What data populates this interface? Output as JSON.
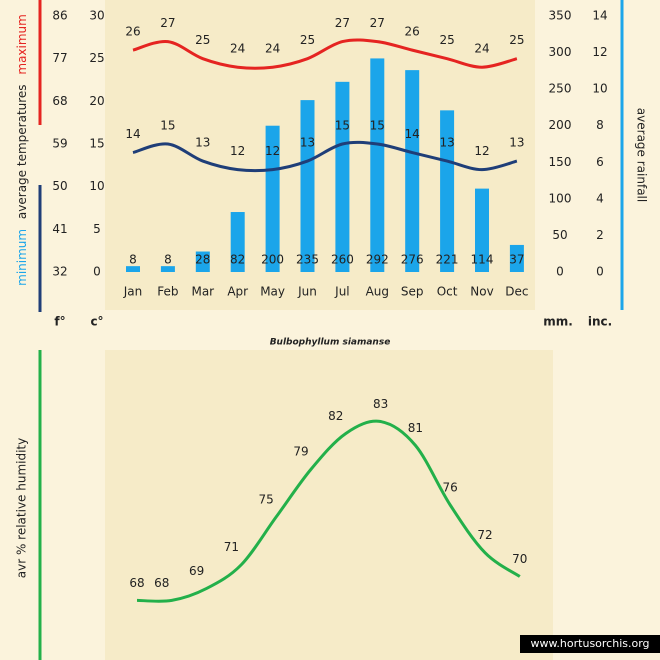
{
  "chart_data": [
    {
      "type": "combo",
      "title": "Bulbophyllum siamanse",
      "ylabel": "average temperatures",
      "categories": [
        "Jan",
        "Feb",
        "Mar",
        "Apr",
        "May",
        "Jun",
        "Jul",
        "Aug",
        "Sep",
        "Oct",
        "Nov",
        "Dec"
      ],
      "series": [
        {
          "name": "average rainfall",
          "type": "bar",
          "axis": "y2",
          "color": "#1ba5ea",
          "values": [
            8,
            8,
            28,
            82,
            200,
            235,
            260,
            292,
            276,
            221,
            114,
            37
          ]
        },
        {
          "name": "maximum",
          "type": "line",
          "color": "#e52421",
          "values": [
            26,
            27,
            25,
            24,
            24,
            25,
            27,
            27,
            26,
            25,
            24,
            25
          ]
        },
        {
          "name": "minimum",
          "type": "line",
          "color": "#1f3e78",
          "values": [
            14,
            15,
            13,
            12,
            12,
            13,
            15,
            15,
            14,
            13,
            12,
            13
          ]
        }
      ],
      "ylim": [
        0,
        30
      ],
      "yticks": [
        0,
        5,
        10,
        15,
        20,
        25,
        30
      ],
      "yunit": "c°",
      "yflim": [
        32,
        86
      ],
      "yfticks": [
        32,
        41,
        50,
        59,
        68,
        77,
        86
      ],
      "yfunit": "f°",
      "y2lim": [
        0,
        350
      ],
      "y2ticks": [
        0,
        50,
        100,
        150,
        200,
        250,
        300,
        350
      ],
      "y2unit": "mm.",
      "y3lim": [
        0,
        14
      ],
      "y3ticks": [
        0,
        2,
        4,
        6,
        8,
        10,
        12,
        14
      ],
      "y3unit": "inc."
    },
    {
      "type": "line",
      "ylabel": "avr % relative humidity",
      "series": [
        {
          "name": null,
          "color": "#23b04a",
          "values": [
            68,
            68,
            69,
            71,
            75,
            79,
            82,
            83,
            81,
            76,
            72,
            70
          ]
        }
      ],
      "ylim": [
        63,
        89
      ],
      "footer": "www.hortusorchis.org"
    }
  ]
}
